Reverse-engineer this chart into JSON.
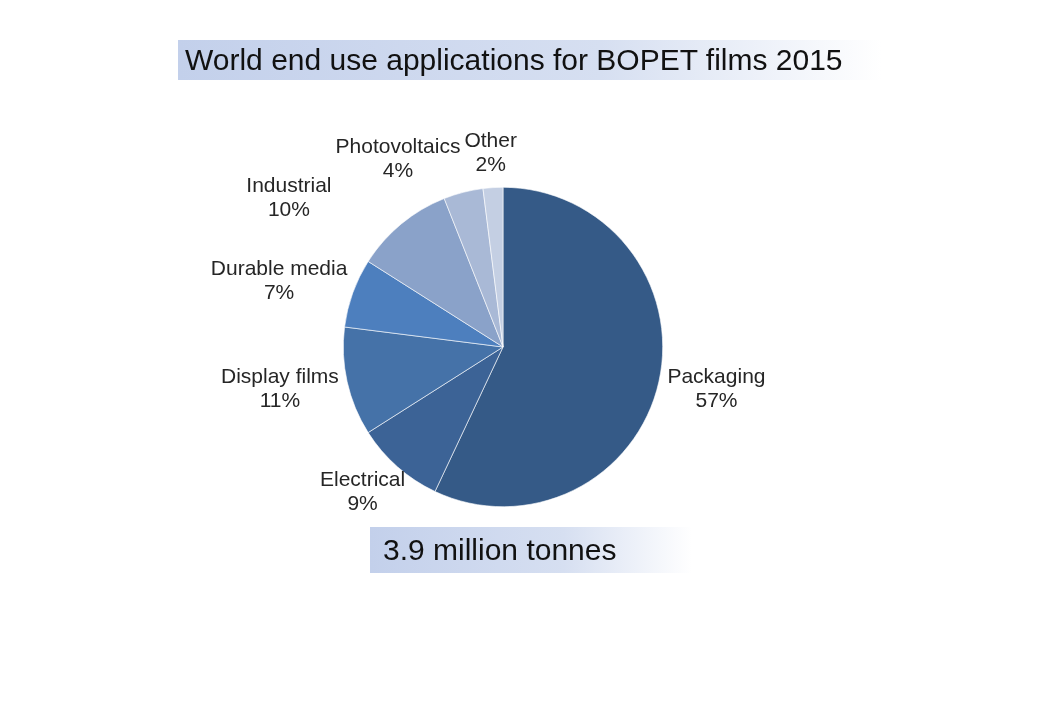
{
  "chart_data": {
    "type": "pie",
    "title": "World end use applications for BOPET films 2015",
    "categories": [
      "Packaging",
      "Electrical",
      "Display films",
      "Durable media",
      "Industrial",
      "Photovoltaics",
      "Other"
    ],
    "values": [
      57,
      9,
      11,
      7,
      10,
      4,
      2
    ],
    "value_labels": [
      "57%",
      "9%",
      "11%",
      "7%",
      "10%",
      "4%",
      "2%"
    ],
    "colors": [
      "#355a87",
      "#3c6396",
      "#4572a8",
      "#4d7fbe",
      "#8aa2c9",
      "#a9b9d6",
      "#c4cfe3"
    ],
    "annotations": [
      "3.9 million tonnes"
    ]
  }
}
